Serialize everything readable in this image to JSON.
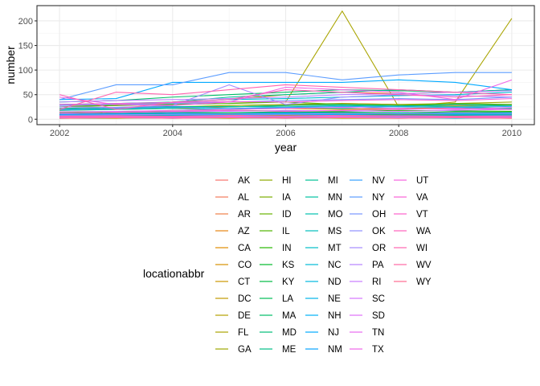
{
  "chart_data": {
    "type": "line",
    "xlabel": "year",
    "ylabel": "number",
    "xlim": [
      2001.6,
      2010.4
    ],
    "ylim": [
      -11,
      231
    ],
    "x_ticks": [
      2002,
      2004,
      2006,
      2008,
      2010
    ],
    "y_ticks": [
      0,
      50,
      100,
      150,
      200
    ],
    "grid": true,
    "legend": {
      "title": "locationabbr",
      "placement": "bottom",
      "columns": 6,
      "entries": [
        "AK",
        "AL",
        "AR",
        "AZ",
        "CA",
        "CO",
        "CT",
        "DC",
        "DE",
        "FL",
        "GA",
        "HI",
        "IA",
        "ID",
        "IL",
        "IN",
        "KS",
        "KY",
        "LA",
        "MA",
        "MD",
        "ME",
        "MI",
        "MN",
        "MO",
        "MS",
        "MT",
        "NC",
        "ND",
        "NE",
        "NH",
        "NJ",
        "NM",
        "NV",
        "NY",
        "OH",
        "OK",
        "OR",
        "PA",
        "RI",
        "SC",
        "SD",
        "TN",
        "TX",
        "UT",
        "VA",
        "VT",
        "WA",
        "WI",
        "WV",
        "WY"
      ]
    },
    "x": [
      2002,
      2003,
      2004,
      2005,
      2006,
      2007,
      2008,
      2009,
      2010
    ],
    "series": [
      {
        "name": "AK",
        "color": "#F8766D",
        "values": [
          5,
          5,
          6,
          5,
          6,
          6,
          5,
          6,
          5
        ]
      },
      {
        "name": "AL",
        "color": "#F47A5C",
        "values": [
          10,
          8,
          9,
          9,
          10,
          9,
          9,
          10,
          8
        ]
      },
      {
        "name": "AR",
        "color": "#EE7E48",
        "values": [
          4,
          5,
          4,
          6,
          5,
          6,
          5,
          6,
          5
        ]
      },
      {
        "name": "AZ",
        "color": "#E68613",
        "values": [
          18,
          20,
          22,
          25,
          28,
          32,
          30,
          28,
          30
        ]
      },
      {
        "name": "CA",
        "color": "#DE8C00",
        "values": [
          30,
          28,
          35,
          40,
          50,
          55,
          52,
          55,
          60
        ]
      },
      {
        "name": "CO",
        "color": "#D59100",
        "values": [
          15,
          14,
          18,
          20,
          22,
          20,
          22,
          24,
          22
        ]
      },
      {
        "name": "CT",
        "color": "#CC9600",
        "values": [
          12,
          12,
          10,
          11,
          14,
          13,
          12,
          13,
          12
        ]
      },
      {
        "name": "DC",
        "color": "#C19A00",
        "values": [
          3,
          4,
          3,
          4,
          3,
          4,
          3,
          4,
          3
        ]
      },
      {
        "name": "DE",
        "color": "#B59F00",
        "values": [
          2,
          2,
          3,
          2,
          3,
          2,
          2,
          3,
          2
        ]
      },
      {
        "name": "FL",
        "color": "#A9A400",
        "values": [
          25,
          30,
          32,
          35,
          35,
          220,
          25,
          35,
          205
        ]
      },
      {
        "name": "GA",
        "color": "#9CA700",
        "values": [
          20,
          22,
          25,
          28,
          30,
          32,
          30,
          32,
          35
        ]
      },
      {
        "name": "HI",
        "color": "#8EAB00",
        "values": [
          6,
          7,
          6,
          7,
          8,
          7,
          8,
          7,
          8
        ]
      },
      {
        "name": "IA",
        "color": "#7CAE00",
        "values": [
          8,
          9,
          10,
          9,
          8,
          9,
          10,
          9,
          10
        ]
      },
      {
        "name": "ID",
        "color": "#68B200",
        "values": [
          7,
          8,
          7,
          8,
          9,
          8,
          7,
          8,
          9
        ]
      },
      {
        "name": "IL",
        "color": "#4FB400",
        "values": [
          25,
          28,
          30,
          32,
          35,
          30,
          28,
          32,
          30
        ]
      },
      {
        "name": "IN",
        "color": "#27B700",
        "values": [
          14,
          15,
          16,
          18,
          17,
          16,
          18,
          17,
          16
        ]
      },
      {
        "name": "KS",
        "color": "#00B92A",
        "values": [
          9,
          10,
          11,
          10,
          12,
          11,
          10,
          12,
          11
        ]
      },
      {
        "name": "KY",
        "color": "#00BA42",
        "values": [
          11,
          10,
          12,
          13,
          12,
          14,
          13,
          12,
          14
        ]
      },
      {
        "name": "LA",
        "color": "#00BC56",
        "values": [
          10,
          12,
          14,
          13,
          15,
          14,
          13,
          15,
          14
        ]
      },
      {
        "name": "MA",
        "color": "#00BD67",
        "values": [
          35,
          38,
          45,
          50,
          55,
          60,
          58,
          55,
          60
        ]
      },
      {
        "name": "MD",
        "color": "#00BE77",
        "values": [
          22,
          24,
          26,
          25,
          28,
          30,
          28,
          26,
          28
        ]
      },
      {
        "name": "ME",
        "color": "#00BF86",
        "values": [
          6,
          5,
          6,
          7,
          6,
          7,
          6,
          7,
          6
        ]
      },
      {
        "name": "MI",
        "color": "#00C094",
        "values": [
          30,
          32,
          35,
          45,
          50,
          55,
          60,
          55,
          60
        ]
      },
      {
        "name": "MN",
        "color": "#00C0A2",
        "values": [
          20,
          22,
          24,
          26,
          25,
          28,
          26,
          30,
          28
        ]
      },
      {
        "name": "MO",
        "color": "#00C0AF",
        "values": [
          18,
          20,
          22,
          20,
          24,
          22,
          26,
          24,
          22
        ]
      },
      {
        "name": "MS",
        "color": "#00BFBC",
        "values": [
          5,
          6,
          7,
          6,
          7,
          8,
          7,
          6,
          7
        ]
      },
      {
        "name": "MT",
        "color": "#00BDC8",
        "values": [
          4,
          5,
          4,
          5,
          6,
          5,
          4,
          5,
          4
        ]
      },
      {
        "name": "NC",
        "color": "#00BBD4",
        "values": [
          30,
          32,
          34,
          40,
          42,
          45,
          48,
          50,
          55
        ]
      },
      {
        "name": "ND",
        "color": "#00B8DF",
        "values": [
          2,
          3,
          2,
          3,
          2,
          3,
          3,
          2,
          3
        ]
      },
      {
        "name": "NE",
        "color": "#00B4EA",
        "values": [
          7,
          8,
          9,
          8,
          10,
          9,
          8,
          9,
          8
        ]
      },
      {
        "name": "NH",
        "color": "#00B0F6",
        "values": [
          9,
          10,
          9,
          10,
          11,
          10,
          12,
          11,
          10
        ]
      },
      {
        "name": "NJ",
        "color": "#00A9FF",
        "values": [
          40,
          42,
          75,
          75,
          75,
          75,
          80,
          75,
          60
        ]
      },
      {
        "name": "NM",
        "color": "#06A4FF",
        "values": [
          10,
          11,
          12,
          11,
          13,
          12,
          11,
          12,
          13
        ]
      },
      {
        "name": "NV",
        "color": "#35A2FF",
        "values": [
          20,
          22,
          25,
          22,
          24,
          26,
          25,
          24,
          26
        ]
      },
      {
        "name": "NY",
        "color": "#5C9DFF",
        "values": [
          40,
          70,
          70,
          95,
          95,
          80,
          90,
          95,
          95
        ]
      },
      {
        "name": "OH",
        "color": "#7997FF",
        "values": [
          28,
          30,
          32,
          35,
          38,
          40,
          42,
          40,
          45
        ]
      },
      {
        "name": "OK",
        "color": "#8F91FF",
        "values": [
          8,
          9,
          10,
          11,
          10,
          12,
          11,
          13,
          12
        ]
      },
      {
        "name": "OR",
        "color": "#A58AFF",
        "values": [
          25,
          24,
          28,
          70,
          30,
          45,
          50,
          48,
          45
        ]
      },
      {
        "name": "PA",
        "color": "#B683FF",
        "values": [
          35,
          38,
          40,
          42,
          45,
          50,
          52,
          55,
          58
        ]
      },
      {
        "name": "RI",
        "color": "#C77CFF",
        "values": [
          5,
          6,
          5,
          6,
          7,
          6,
          5,
          6,
          5
        ]
      },
      {
        "name": "SC",
        "color": "#D476FF",
        "values": [
          12,
          14,
          15,
          16,
          18,
          17,
          16,
          18,
          20
        ]
      },
      {
        "name": "SD",
        "color": "#DF70F8",
        "values": [
          3,
          4,
          3,
          4,
          5,
          4,
          3,
          4,
          3
        ]
      },
      {
        "name": "TN",
        "color": "#E96AF0",
        "values": [
          15,
          16,
          18,
          20,
          22,
          24,
          22,
          20,
          24
        ]
      },
      {
        "name": "TX",
        "color": "#F166E8",
        "values": [
          45,
          30,
          28,
          35,
          65,
          60,
          55,
          40,
          80
        ]
      },
      {
        "name": "UT",
        "color": "#F763E0",
        "values": [
          12,
          14,
          16,
          18,
          16,
          18,
          20,
          22,
          20
        ]
      },
      {
        "name": "VA",
        "color": "#FB61D7",
        "values": [
          30,
          32,
          34,
          36,
          35,
          38,
          40,
          38,
          42
        ]
      },
      {
        "name": "VT",
        "color": "#FD61CC",
        "values": [
          4,
          5,
          4,
          5,
          4,
          5,
          6,
          5,
          4
        ]
      },
      {
        "name": "WA",
        "color": "#FF62BC",
        "values": [
          50,
          20,
          35,
          40,
          60,
          55,
          50,
          45,
          50
        ]
      },
      {
        "name": "WI",
        "color": "#FF64B0",
        "values": [
          20,
          55,
          50,
          60,
          70,
          65,
          60,
          55,
          50
        ]
      },
      {
        "name": "WV",
        "color": "#FF67A4",
        "values": [
          6,
          7,
          6,
          8,
          7,
          8,
          7,
          6,
          7
        ]
      },
      {
        "name": "WY",
        "color": "#FF6C91",
        "values": [
          2,
          3,
          2,
          3,
          2,
          3,
          2,
          3,
          2
        ]
      }
    ]
  }
}
